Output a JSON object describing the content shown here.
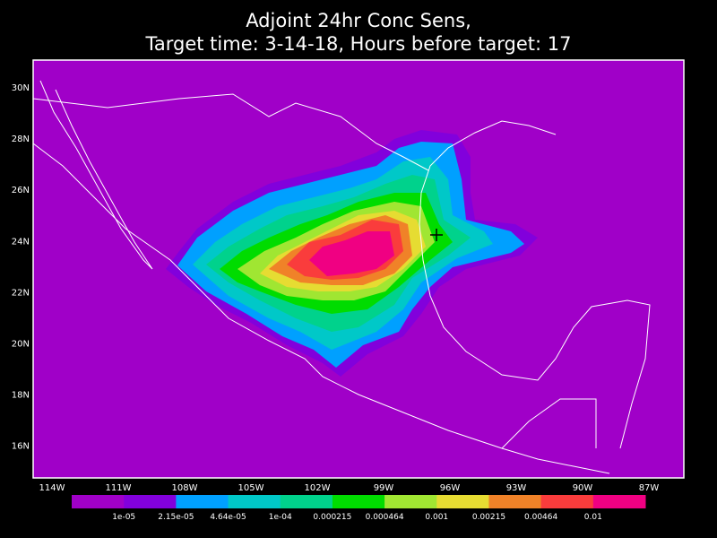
{
  "title": [
    "Adjoint 24hr Conc Sens,",
    "Target time: 3-14-18, Hours before target: 17"
  ],
  "lat_labels": [
    "30N",
    "28N",
    "26N",
    "24N",
    "22N",
    "20N",
    "18N",
    "16N"
  ],
  "lon_labels": [
    "114W",
    "111W",
    "108W",
    "105W",
    "102W",
    "99W",
    "96W",
    "93W",
    "90W",
    "87W"
  ],
  "colorbar": {
    "colors": [
      "#a000c8",
      "#8200dc",
      "#00a0ff",
      "#00c8c8",
      "#00d28c",
      "#00dc00",
      "#a0e632",
      "#e6dc32",
      "#f08228",
      "#fa3c3c",
      "#f00082"
    ],
    "labels": [
      "1e-05",
      "2.15e-05",
      "4.64e-05",
      "1e-04",
      "0.000215",
      "0.000464",
      "0.001",
      "0.00215",
      "0.00464",
      "0.01"
    ]
  }
}
